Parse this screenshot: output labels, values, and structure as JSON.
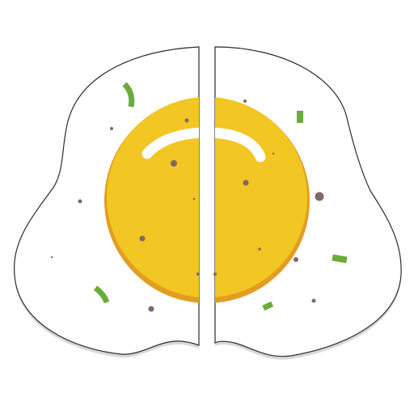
{
  "illustration": {
    "subject": "fried-egg-split-in-half-icon",
    "colors": {
      "background": "#ffffff",
      "egg_white": "#ffffff",
      "egg_white_shadow": "#d9d9d9",
      "outline": "#2b2b2b",
      "yolk": "#f2c623",
      "yolk_rim": "#e39d22",
      "highlight": "#ffffff",
      "pepper": "#7d6a63",
      "herbs": "#6aac3a"
    }
  }
}
